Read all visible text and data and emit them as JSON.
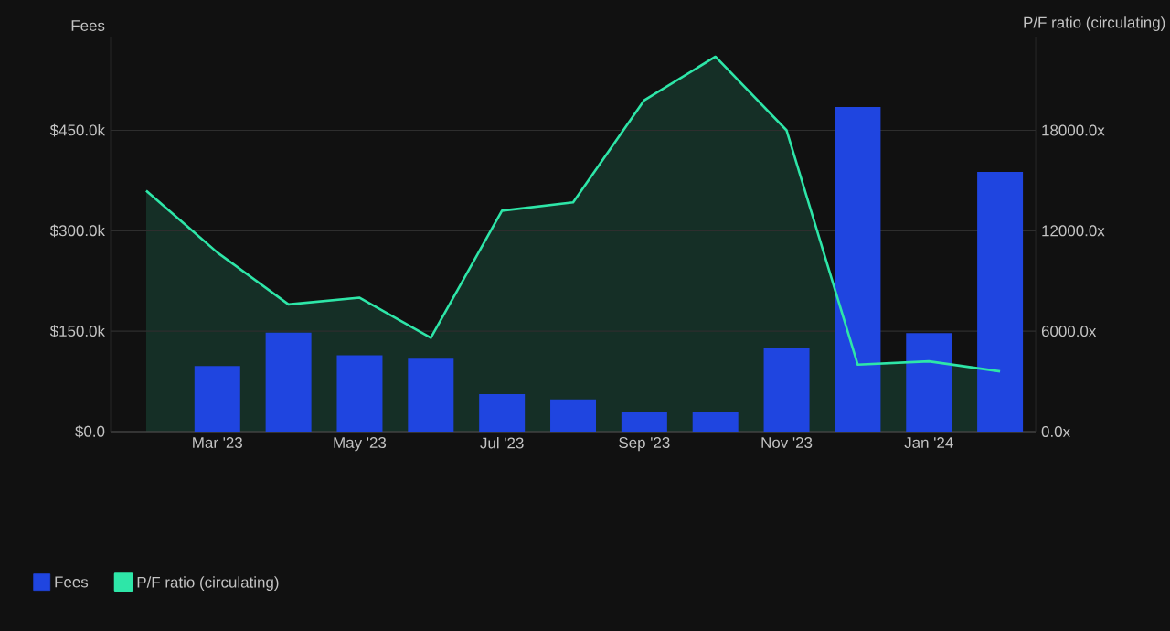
{
  "chart_data": {
    "type": "bar",
    "ylabel": "Fees",
    "y2label": "P/F ratio (circulating)",
    "categories": [
      null,
      "Mar '23",
      null,
      "May '23",
      null,
      "Jul '23",
      null,
      "Sep '23",
      null,
      "Nov '23",
      null,
      "Jan '24",
      null
    ],
    "series": [
      {
        "name": "Fees",
        "color": "#1f45e0",
        "values": [
          null,
          98000,
          148000,
          114000,
          109000,
          56000,
          48000,
          30000,
          30000,
          125000,
          485000,
          147000,
          388000
        ]
      },
      {
        "name": "P/F ratio (circulating)",
        "type": "area",
        "axis": "y2",
        "color": "#2ee6a8",
        "values": [
          14400,
          10700,
          7600,
          8000,
          5600,
          13200,
          13700,
          19800,
          22400,
          18000,
          4000,
          4200,
          3600
        ]
      }
    ],
    "ylim": [
      0,
      590000
    ],
    "yticks": [
      {
        "value": 0,
        "label": "$0.0"
      },
      {
        "value": 150000,
        "label": "$150.0k"
      },
      {
        "value": 300000,
        "label": "$300.0k"
      },
      {
        "value": 450000,
        "label": "$450.0k"
      }
    ],
    "y2lim": [
      0,
      23600
    ],
    "y2ticks": [
      {
        "value": 0,
        "label": "0.0x"
      },
      {
        "value": 6000,
        "label": "6000.0x"
      },
      {
        "value": 12000,
        "label": "12000.0x"
      },
      {
        "value": 18000,
        "label": "18000.0x"
      }
    ],
    "grid": "y",
    "legend": "bottom left"
  }
}
